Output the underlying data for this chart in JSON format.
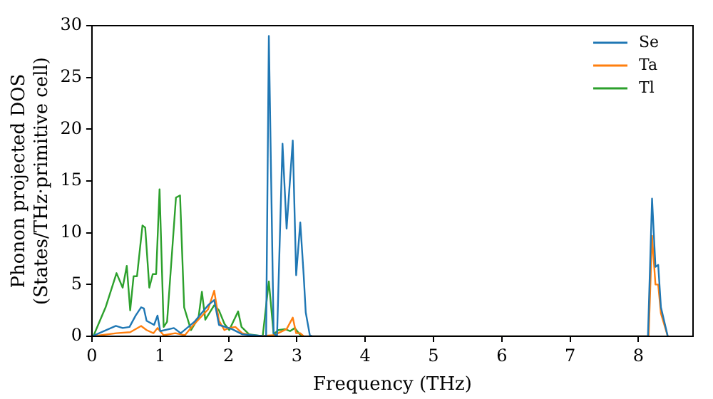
{
  "chart_data": {
    "type": "line",
    "xlabel": "Frequency (THz)",
    "ylabel": "Phonon projected DOS\n(States/THz·primitive cell)",
    "xlim": [
      0,
      8.8
    ],
    "ylim": [
      0,
      30
    ],
    "xticks": [
      0,
      1,
      2,
      3,
      4,
      5,
      6,
      7,
      8
    ],
    "yticks": [
      0,
      5,
      10,
      15,
      20,
      25,
      30
    ],
    "grid": false,
    "legend": "top right",
    "marker": "none",
    "line_style": "solid",
    "series": [
      {
        "name": "Se",
        "color": "#1f77b4",
        "x": [
          0,
          0.35,
          0.45,
          0.55,
          0.64,
          0.72,
          0.76,
          0.8,
          0.91,
          0.96,
          1.0,
          1.2,
          1.3,
          1.5,
          1.7,
          1.79,
          1.86,
          2.05,
          2.2,
          2.55,
          2.59,
          2.66,
          2.71,
          2.79,
          2.85,
          2.94,
          2.99,
          3.05,
          3.1,
          3.13,
          3.19,
          3.23,
          8.14,
          8.2,
          8.25,
          8.29,
          8.33,
          8.43
        ],
        "values": [
          0,
          1,
          0.8,
          0.9,
          2,
          2.8,
          2.7,
          1.5,
          1.1,
          2,
          0.5,
          0.8,
          0.3,
          1.4,
          3,
          3.5,
          1.1,
          0.7,
          0.2,
          0,
          29,
          0.3,
          0,
          18.6,
          10.4,
          18.9,
          5.9,
          11,
          5.9,
          2.3,
          0.1,
          0,
          0,
          13.3,
          6.7,
          6.9,
          2.8,
          0
        ]
      },
      {
        "name": "Ta",
        "color": "#ff7f0e",
        "x": [
          0,
          0.36,
          0.56,
          0.72,
          0.8,
          0.9,
          0.96,
          1.05,
          1.22,
          1.36,
          1.5,
          1.7,
          1.79,
          1.86,
          1.94,
          2.0,
          2.1,
          2.2,
          2.4,
          2.66,
          2.85,
          2.94,
          2.99,
          3.05,
          3.1,
          8.15,
          8.2,
          8.25,
          8.29,
          8.33,
          8.43
        ],
        "values": [
          0,
          0.3,
          0.4,
          1,
          0.6,
          0.3,
          0.8,
          0.1,
          0.3,
          0.1,
          1.2,
          2.6,
          4.4,
          1.5,
          0.6,
          0.8,
          0.9,
          0.3,
          0,
          0.1,
          0.7,
          1.8,
          0.3,
          0.3,
          0,
          0,
          9.7,
          5,
          5,
          2.2,
          0
        ]
      },
      {
        "name": "Tl",
        "color": "#2ca02c",
        "x": [
          0,
          0.02,
          0.2,
          0.36,
          0.45,
          0.51,
          0.56,
          0.61,
          0.66,
          0.74,
          0.78,
          0.84,
          0.89,
          0.94,
          0.99,
          1.05,
          1.1,
          1.23,
          1.29,
          1.35,
          1.45,
          1.56,
          1.61,
          1.66,
          1.79,
          1.86,
          1.94,
          2.01,
          2.14,
          2.19,
          2.3,
          2.5,
          2.59,
          2.66,
          2.73,
          2.83,
          2.9,
          2.97,
          3.04,
          3.1
        ],
        "values": [
          0,
          0,
          2.8,
          6.1,
          4.7,
          6.8,
          2.5,
          5.8,
          5.8,
          10.7,
          10.5,
          4.7,
          6,
          6,
          14.2,
          0.9,
          1.4,
          13.4,
          13.6,
          2.8,
          0.6,
          1.8,
          4.3,
          1.6,
          3,
          2.5,
          1.2,
          0.6,
          2.4,
          0.9,
          0.2,
          0,
          5.3,
          0.2,
          0.6,
          0.7,
          0.5,
          0.8,
          0.2,
          0
        ]
      }
    ]
  }
}
